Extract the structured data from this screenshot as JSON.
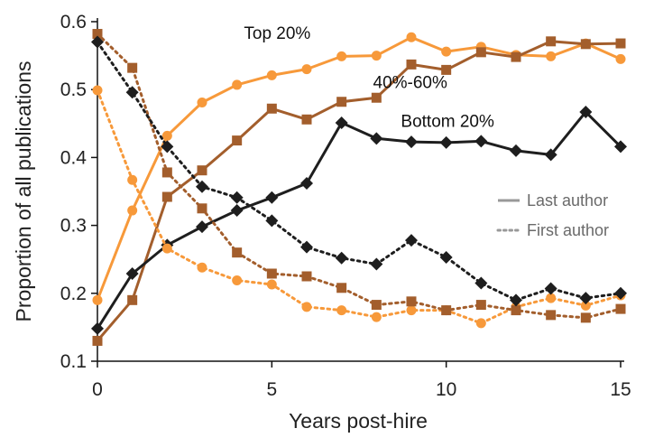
{
  "chart_data": {
    "type": "line",
    "title": "",
    "xlabel": "Years post-hire",
    "ylabel": "Proportion of all publications",
    "xlim": [
      0,
      15
    ],
    "ylim": [
      0.1,
      0.6
    ],
    "x": [
      0,
      1,
      2,
      3,
      4,
      5,
      6,
      7,
      8,
      9,
      10,
      11,
      12,
      13,
      14,
      15
    ],
    "xticks": [
      0,
      5,
      10,
      15
    ],
    "xtick_labels": [
      "0",
      "5",
      "10",
      "15"
    ],
    "yticks": [
      0.1,
      0.2,
      0.3,
      0.4,
      0.5,
      0.6
    ],
    "ytick_labels": [
      "0.1",
      "0.2",
      "0.3",
      "0.4",
      "0.5",
      "0.6"
    ],
    "grid": false,
    "legend": {
      "position": "right",
      "entries": [
        {
          "label": "Last author",
          "style": "solid"
        },
        {
          "label": "First author",
          "style": "dotted"
        }
      ]
    },
    "annotations": [
      {
        "text": "Top 20%",
        "x": 4.2,
        "y": 0.575
      },
      {
        "text": "40%-60%",
        "x": 7.9,
        "y": 0.502
      },
      {
        "text": "Bottom 20%",
        "x": 8.7,
        "y": 0.445
      }
    ],
    "series": [
      {
        "name": "Top 20% - Last author",
        "group": "Top 20%",
        "role": "Last author",
        "color": "#F7993A",
        "marker": "circle",
        "style": "solid",
        "values": [
          0.19,
          0.322,
          0.432,
          0.481,
          0.507,
          0.521,
          0.53,
          0.549,
          0.55,
          0.577,
          0.556,
          0.563,
          0.551,
          0.549,
          0.568,
          0.545
        ]
      },
      {
        "name": "40%-60% - Last author",
        "group": "40%-60%",
        "role": "Last author",
        "color": "#A35E2C",
        "marker": "square",
        "style": "solid",
        "values": [
          0.13,
          0.19,
          0.342,
          0.381,
          0.425,
          0.472,
          0.456,
          0.482,
          0.488,
          0.537,
          0.529,
          0.555,
          0.548,
          0.571,
          0.567,
          0.568
        ]
      },
      {
        "name": "Bottom 20% - Last author",
        "group": "Bottom 20%",
        "role": "Last author",
        "color": "#1E1E1E",
        "marker": "diamond",
        "style": "solid",
        "values": [
          0.148,
          0.229,
          0.271,
          0.298,
          0.322,
          0.341,
          0.362,
          0.451,
          0.428,
          0.423,
          0.422,
          0.424,
          0.41,
          0.404,
          0.467,
          0.416
        ]
      },
      {
        "name": "Top 20% - First author",
        "group": "Top 20%",
        "role": "First author",
        "color": "#F7993A",
        "marker": "circle",
        "style": "dotted",
        "values": [
          0.499,
          0.367,
          0.266,
          0.238,
          0.219,
          0.213,
          0.18,
          0.175,
          0.165,
          0.175,
          0.175,
          0.156,
          0.18,
          0.193,
          0.182,
          0.197
        ]
      },
      {
        "name": "40%-60% - First author",
        "group": "40%-60%",
        "role": "First author",
        "color": "#A35E2C",
        "marker": "square",
        "style": "dotted",
        "values": [
          0.582,
          0.532,
          0.378,
          0.325,
          0.26,
          0.229,
          0.225,
          0.208,
          0.183,
          0.188,
          0.175,
          0.183,
          0.175,
          0.168,
          0.164,
          0.177
        ]
      },
      {
        "name": "Bottom 20% - First author",
        "group": "Bottom 20%",
        "role": "First author",
        "color": "#1E1E1E",
        "marker": "diamond",
        "style": "dotted",
        "values": [
          0.57,
          0.496,
          0.416,
          0.357,
          0.341,
          0.307,
          0.268,
          0.252,
          0.243,
          0.278,
          0.253,
          0.215,
          0.19,
          0.207,
          0.193,
          0.2
        ]
      }
    ]
  }
}
